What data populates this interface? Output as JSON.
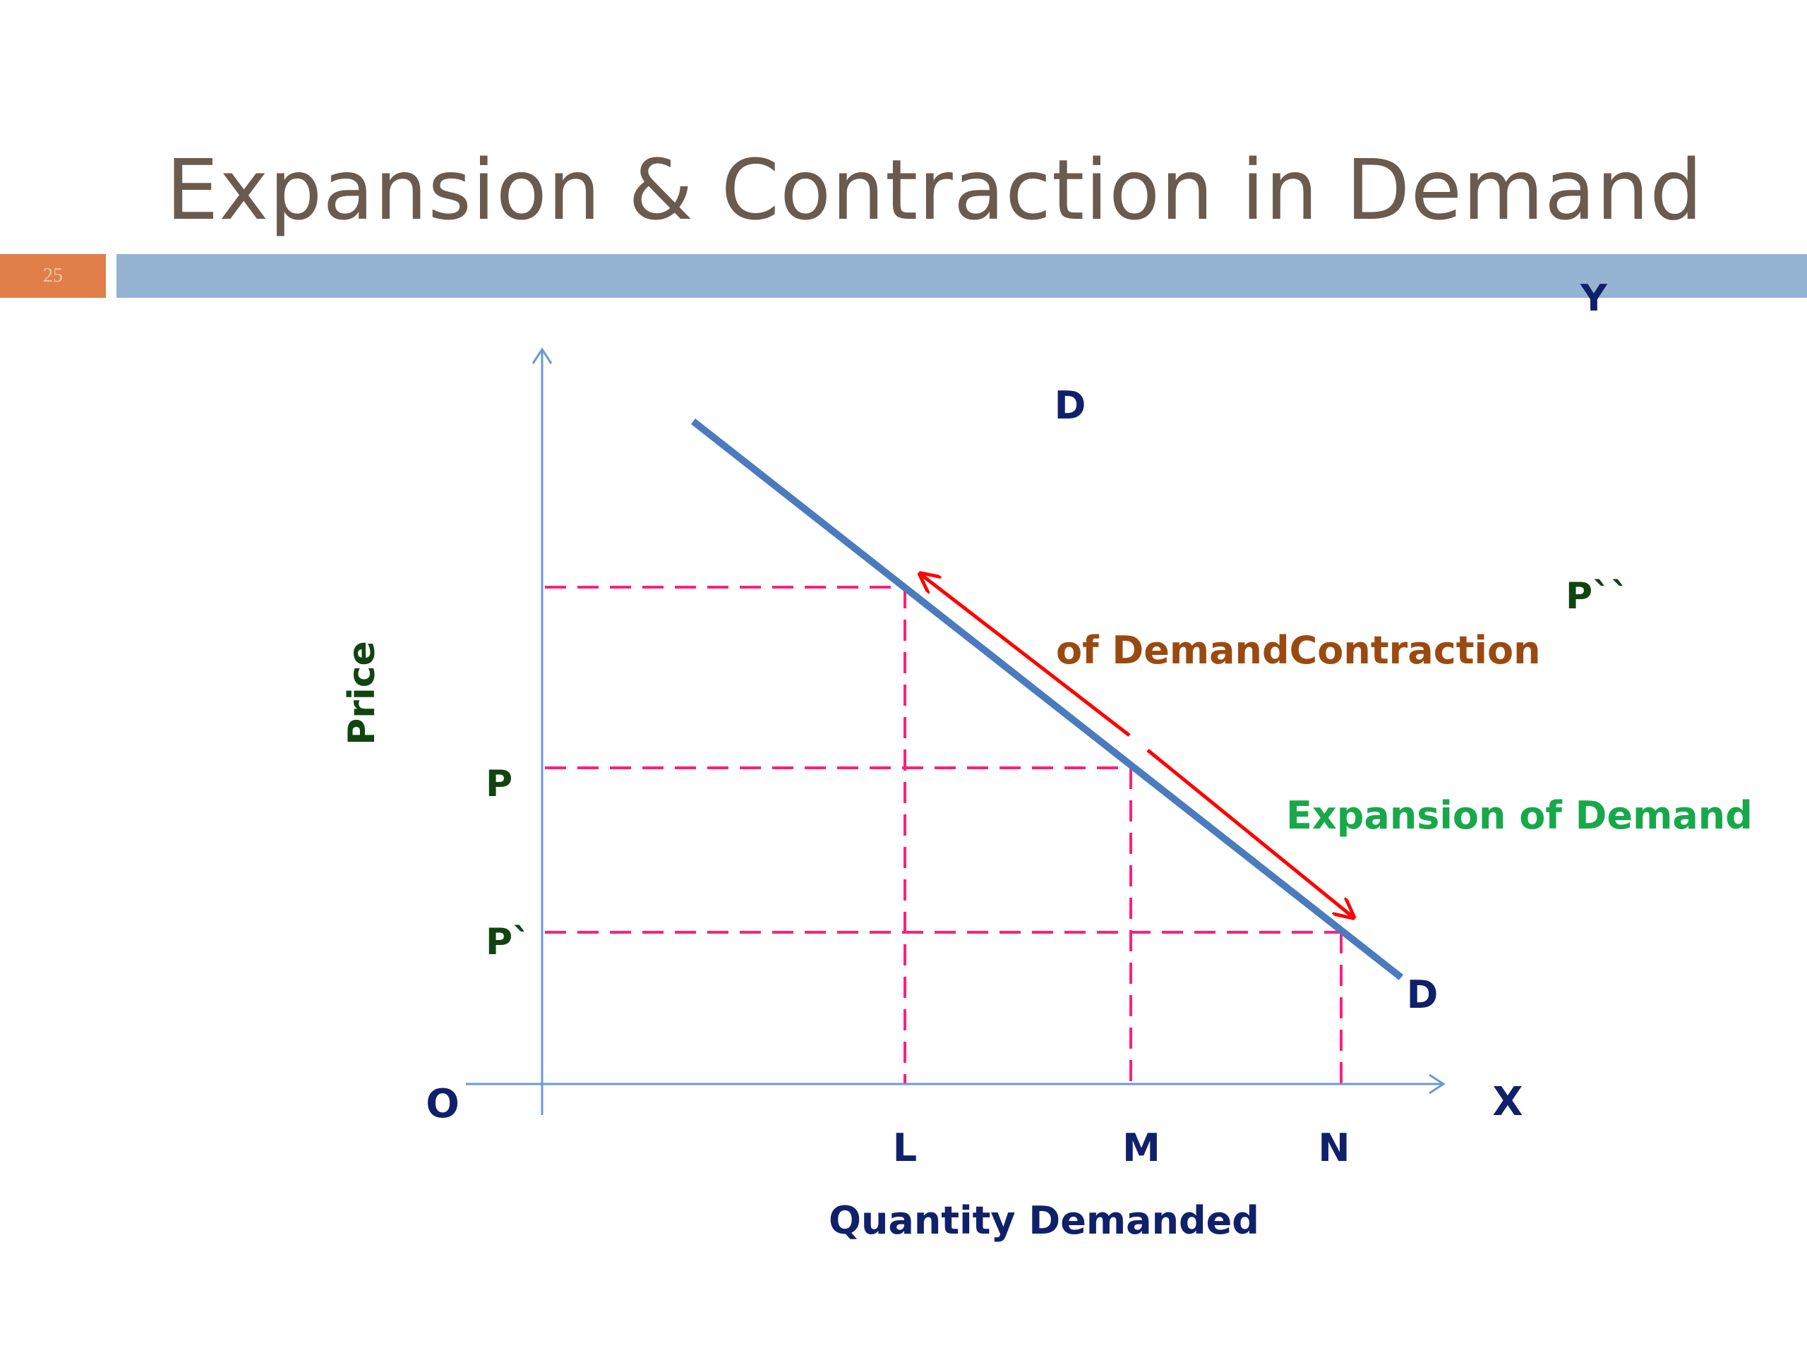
{
  "slide": {
    "title": "Expansion & Contraction in Demand",
    "number": "25"
  },
  "diagram": {
    "axis_y_letter": "Y",
    "axis_x_letter": "X",
    "origin_label": "O",
    "y_axis_title": "Price",
    "x_axis_title": "Quantity Demanded",
    "price_levels": [
      "P``",
      "P",
      "P`"
    ],
    "quantity_levels": [
      "L",
      "M",
      "N"
    ],
    "curve_label_top": "D",
    "curve_label_bottom": "D",
    "contraction_label": "of DemandContraction",
    "expansion_label": "Expansion of Demand"
  },
  "colors": {
    "title": "#6b5a4e",
    "accent_bar": "#95b3d3",
    "number_tab": "#e07f4a",
    "demand_curve": "#4a7bbf",
    "axes": "#6a9ad0",
    "dashed_guides": "#ff1f7a",
    "arrows": "#ff0000",
    "navy_labels": "#10206a",
    "price_labels": "#114411",
    "contraction_text": "#9a4a10",
    "expansion_text": "#17a84a"
  }
}
